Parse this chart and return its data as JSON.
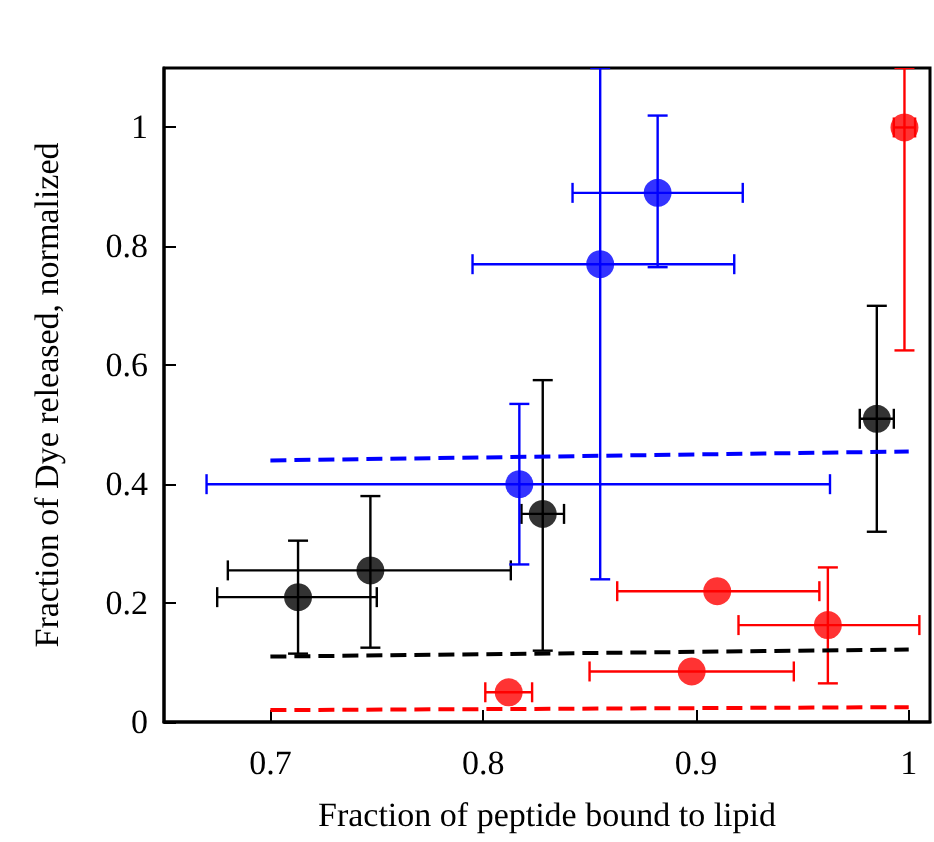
{
  "chart_data": {
    "type": "scatter",
    "xlabel": "Fraction of peptide bound to lipid",
    "ylabel": "Fraction of Dye released, normalized",
    "xlim": [
      0.65,
      1.01
    ],
    "ylim": [
      0,
      1.1
    ],
    "xticks": [
      0.7,
      0.8,
      0.9,
      1
    ],
    "yticks": [
      0,
      0.2,
      0.4,
      0.6,
      0.8,
      1
    ],
    "marker": "circle",
    "series": [
      {
        "color": "#000000",
        "x": [
          0.713,
          0.747,
          0.828,
          0.985
        ],
        "values": [
          0.21,
          0.255,
          0.35,
          0.51
        ],
        "errors": [
          [
            0.115,
            0.305
          ],
          [
            0.125,
            0.38
          ],
          [
            0.12,
            0.575
          ],
          [
            0.32,
            0.7
          ]
        ],
        "xerrors": [
          [
            0.675,
            0.75
          ],
          [
            0.68,
            0.813
          ],
          [
            0.818,
            0.838
          ],
          [
            0.977,
            0.993
          ]
        ]
      },
      {
        "color": "#0000ff",
        "x": [
          0.817,
          0.855,
          0.882
        ],
        "values": [
          0.4,
          0.77,
          0.89
        ],
        "errors": [
          [
            0.265,
            0.535
          ],
          [
            0.24,
            1.1
          ],
          [
            0.765,
            1.02
          ]
        ],
        "xerrors": [
          [
            0.67,
            0.963
          ],
          [
            0.795,
            0.918
          ],
          [
            0.842,
            0.922
          ]
        ]
      },
      {
        "color": "#ff0000",
        "x": [
          0.812,
          0.898,
          0.91,
          0.962,
          0.998
        ],
        "values": [
          0.05,
          0.085,
          0.22,
          0.163,
          1.0
        ],
        "errors": [
          null,
          null,
          null,
          [
            0.065,
            0.26
          ],
          [
            0.625,
            1.1
          ]
        ],
        "xerrors": [
          [
            0.801,
            0.823
          ],
          [
            0.85,
            0.946
          ],
          [
            0.863,
            0.958
          ],
          [
            0.92,
            1.005
          ],
          [
            0.993,
            1.003
          ]
        ]
      },
      {
        "type": "line",
        "color": "#0000ff",
        "line_style": "dashed",
        "marker": "none",
        "x": [
          0.7,
          1
        ],
        "values": [
          0.44,
          0.455
        ]
      },
      {
        "type": "line",
        "color": "#000000",
        "line_style": "dashed",
        "marker": "none",
        "x": [
          0.7,
          1
        ],
        "values": [
          0.11,
          0.122
        ]
      },
      {
        "type": "line",
        "color": "#ff0000",
        "line_style": "dashed",
        "marker": "none",
        "x": [
          0.7,
          1
        ],
        "values": [
          0.02,
          0.025
        ]
      }
    ]
  }
}
